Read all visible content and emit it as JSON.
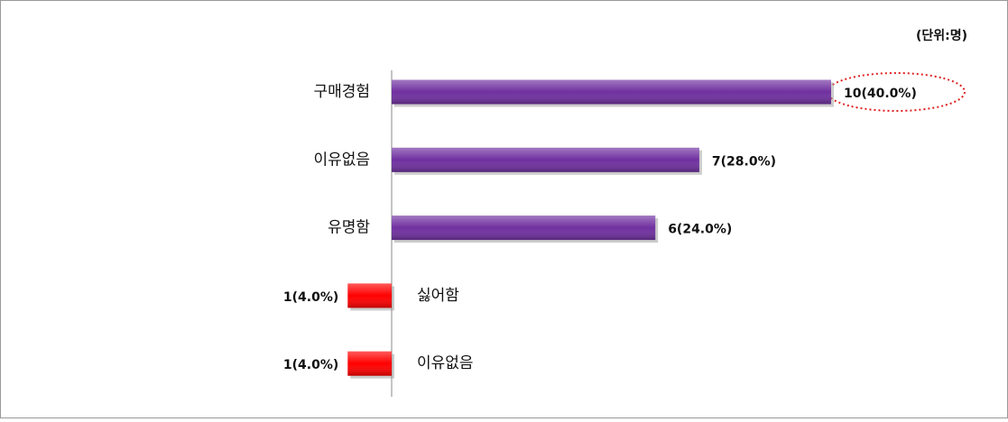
{
  "chart_data": {
    "type": "bar",
    "orientation": "horizontal",
    "unit_label": "(단위:명)",
    "categories": [
      "구매경험",
      "이유없음",
      "유명함",
      "싫어함",
      "이유없음"
    ],
    "values": [
      10,
      7,
      6,
      -1,
      -1
    ],
    "value_labels": [
      "10(40.0%)",
      "7(28.0%)",
      "6(24.0%)",
      "1(4.0%)",
      "1(4.0%)"
    ],
    "colors": [
      "#7030a0",
      "#7030a0",
      "#7030a0",
      "#ff0000",
      "#ff0000"
    ],
    "xlim": [
      -2,
      12
    ],
    "grid": false
  }
}
